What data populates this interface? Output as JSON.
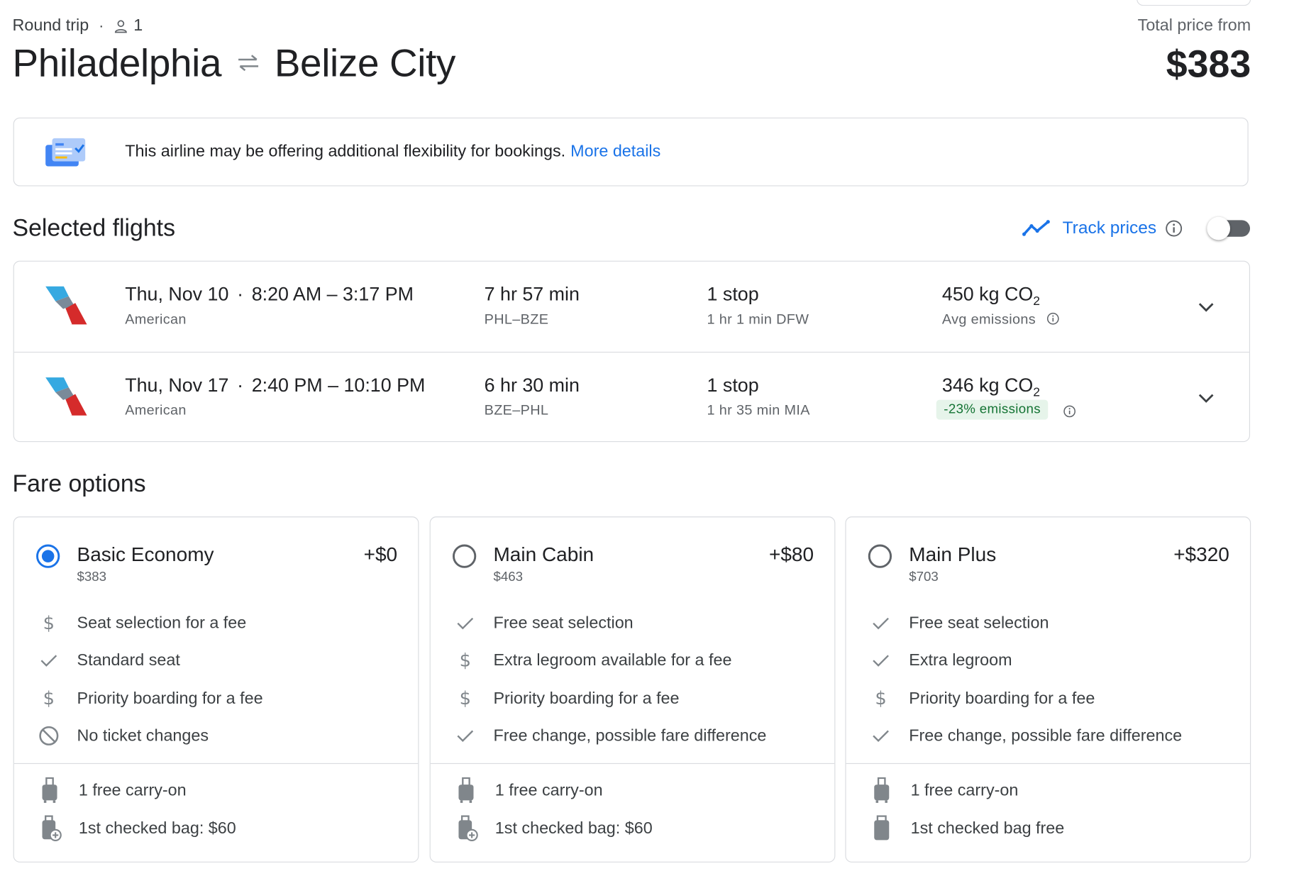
{
  "header": {
    "trip_type": "Round trip",
    "passengers": "1",
    "origin": "Philadelphia",
    "destination": "Belize City",
    "total_label": "Total price from",
    "total_price": "$383"
  },
  "banner": {
    "message": "This airline may be offering additional flexibility for bookings.",
    "link": "More details"
  },
  "selected": {
    "title": "Selected flights",
    "track_label": "Track prices",
    "track_enabled": false
  },
  "flights": [
    {
      "date": "Thu, Nov 10",
      "times": "8:20 AM – 3:17 PM",
      "airline": "American",
      "duration": "7 hr 57 min",
      "route": "PHL–BZE",
      "stops": "1 stop",
      "layover": "1 hr 1 min DFW",
      "co2_value": "450 kg CO",
      "co2_sub": "2",
      "emissions": "Avg emissions"
    },
    {
      "date": "Thu, Nov 17",
      "times": "2:40 PM – 10:10 PM",
      "airline": "American",
      "duration": "6 hr 30 min",
      "route": "BZE–PHL",
      "stops": "1 stop",
      "layover": "1 hr 35 min MIA",
      "co2_value": "346 kg CO",
      "co2_sub": "2",
      "emissions": "-23% emissions"
    }
  ],
  "fares": {
    "title": "Fare options",
    "options": [
      {
        "name": "Basic Economy",
        "price": "$383",
        "delta": "+$0",
        "selected": true,
        "features": [
          {
            "icon": "dollar-icon",
            "text": "Seat selection for a fee"
          },
          {
            "icon": "check-icon",
            "text": "Standard seat"
          },
          {
            "icon": "dollar-icon",
            "text": "Priority boarding for a fee"
          },
          {
            "icon": "no-icon",
            "text": "No ticket changes"
          }
        ],
        "bags": [
          {
            "icon": "carry-on-icon",
            "text": "1 free carry-on"
          },
          {
            "icon": "checked-bag-fee-icon",
            "text": "1st checked bag: $60"
          }
        ]
      },
      {
        "name": "Main Cabin",
        "price": "$463",
        "delta": "+$80",
        "selected": false,
        "features": [
          {
            "icon": "check-icon",
            "text": "Free seat selection"
          },
          {
            "icon": "dollar-icon",
            "text": "Extra legroom available for a fee"
          },
          {
            "icon": "dollar-icon",
            "text": "Priority boarding for a fee"
          },
          {
            "icon": "check-icon",
            "text": "Free change, possible fare difference"
          }
        ],
        "bags": [
          {
            "icon": "carry-on-icon",
            "text": "1 free carry-on"
          },
          {
            "icon": "checked-bag-fee-icon",
            "text": "1st checked bag: $60"
          }
        ]
      },
      {
        "name": "Main Plus",
        "price": "$703",
        "delta": "+$320",
        "selected": false,
        "features": [
          {
            "icon": "check-icon",
            "text": "Free seat selection"
          },
          {
            "icon": "check-icon",
            "text": "Extra legroom"
          },
          {
            "icon": "dollar-icon",
            "text": "Priority boarding for a fee"
          },
          {
            "icon": "check-icon",
            "text": "Free change, possible fare difference"
          }
        ],
        "bags": [
          {
            "icon": "carry-on-icon",
            "text": "1 free carry-on"
          },
          {
            "icon": "checked-bag-icon",
            "text": "1st checked bag free"
          }
        ]
      }
    ]
  },
  "colors": {
    "accent": "#1a73e8",
    "text": "#202124",
    "muted": "#5f6368",
    "border": "#dadce0",
    "emission_badge_bg": "#e6f4ea",
    "emission_badge_text": "#137333"
  }
}
